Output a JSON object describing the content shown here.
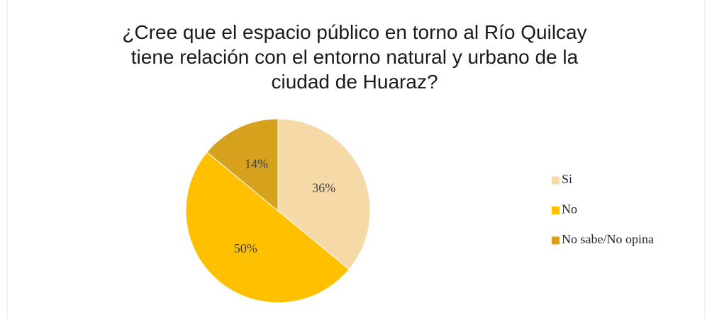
{
  "chart_data": {
    "type": "pie",
    "title": "¿Cree que el espacio público en torno al Río Quilcay tiene relación con el entorno natural y urbano de la ciudad de Huaraz?",
    "categories": [
      "Si",
      "No",
      "No sabe/No opina"
    ],
    "values": [
      36,
      50,
      14
    ],
    "value_labels": [
      "36%",
      "50%",
      "14%"
    ],
    "colors": [
      "#f5d9a6",
      "#ffc000",
      "#d6a11c"
    ],
    "legend": "right"
  }
}
